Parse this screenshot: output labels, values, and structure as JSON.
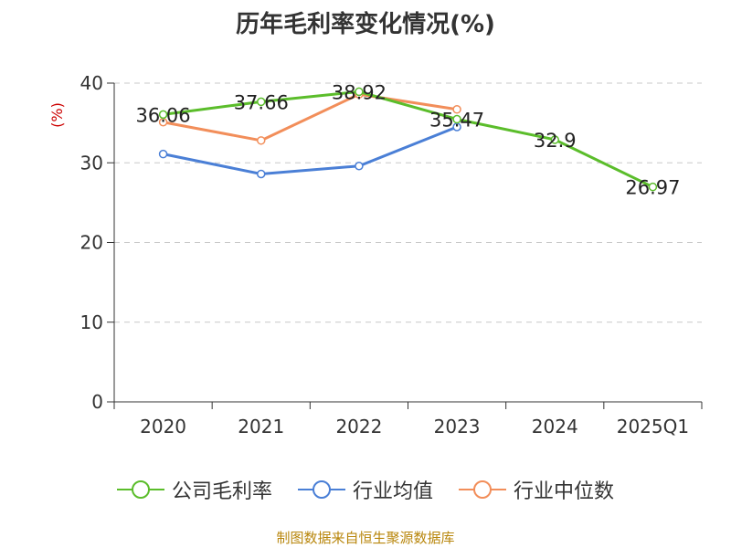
{
  "chart_data": {
    "type": "line",
    "title": "历年毛利率变化情况(%)",
    "ylabel": "(%)",
    "xlabel": "",
    "categories": [
      "2020",
      "2021",
      "2022",
      "2023",
      "2024",
      "2025Q1"
    ],
    "ylim": [
      0,
      40
    ],
    "yticks": [
      0,
      10,
      20,
      30,
      40
    ],
    "grid": true,
    "legend_position": "bottom",
    "series": [
      {
        "name": "公司毛利率",
        "color": "#5bbd2b",
        "values": [
          36.06,
          37.66,
          38.92,
          35.47,
          32.9,
          26.97
        ],
        "labels": [
          "36.06",
          "37.66",
          "38.92",
          "35.47",
          "32.9",
          "26.97"
        ]
      },
      {
        "name": "行业均值",
        "color": "#4a7fd6",
        "values": [
          31.1,
          28.6,
          29.6,
          34.5,
          null,
          null
        ]
      },
      {
        "name": "行业中位数",
        "color": "#f28e5a",
        "values": [
          35.1,
          32.8,
          38.6,
          36.7,
          null,
          null
        ]
      }
    ],
    "axis_color": "#333333",
    "ylabel_color": "#cc0000"
  },
  "footer": {
    "source": "制图数据来自恒生聚源数据库"
  }
}
